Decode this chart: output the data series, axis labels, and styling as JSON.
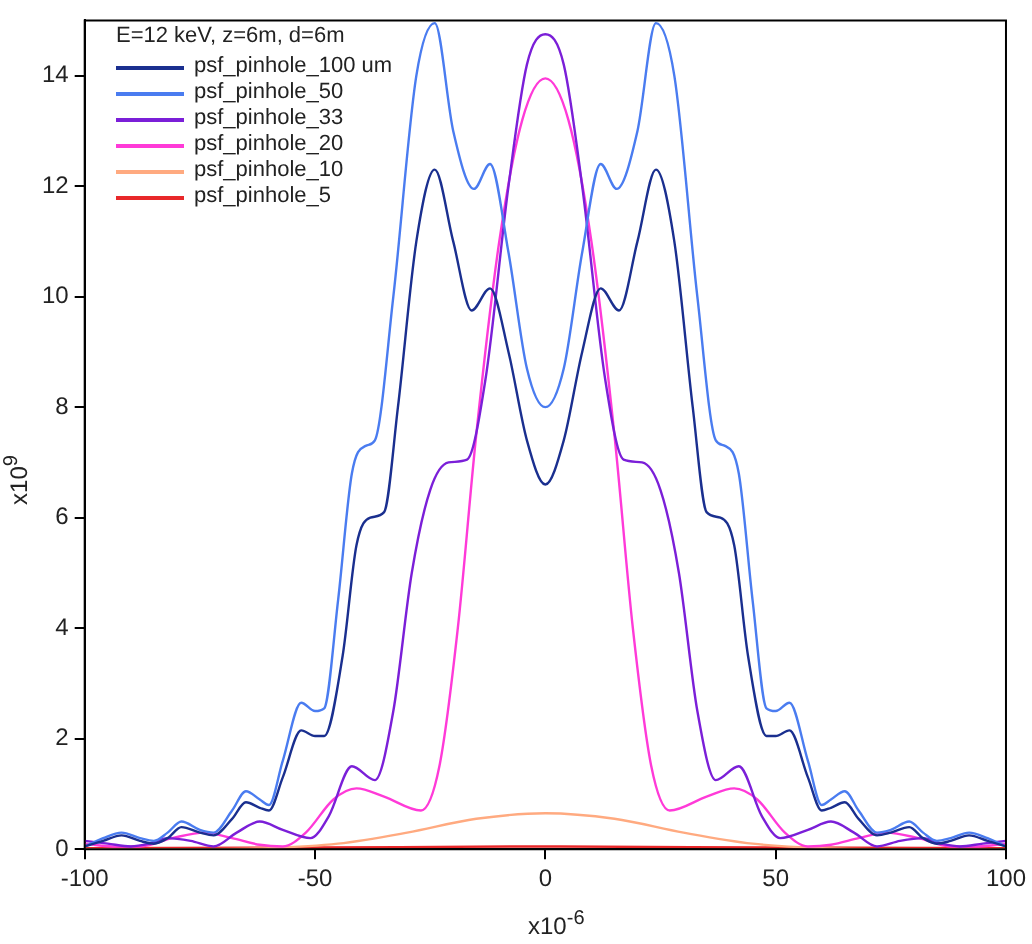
{
  "chart_data": {
    "type": "line",
    "legend_title": "E=12 keV, z=6m, d=6m",
    "xlabel": "x10$^{-6}$",
    "ylabel": "x10$^{9}$",
    "xlim": [
      -100,
      100
    ],
    "xticks": [
      -100,
      -50,
      0,
      50,
      100
    ],
    "ylim": [
      0,
      15
    ],
    "yticks": [
      0,
      2,
      4,
      6,
      8,
      10,
      12,
      14
    ],
    "grid": false,
    "legend": "top left",
    "series": [
      {
        "name": "psf_pinhole_100 um",
        "color": "#1a2f8f",
        "x": [
          -100,
          -96,
          -92,
          -88,
          -85,
          -82,
          -79,
          -75,
          -72,
          -68,
          -65,
          -62,
          -60,
          -57,
          -53,
          -50,
          -48,
          -44,
          -41,
          -38,
          -35,
          -32,
          -28,
          -24,
          -20,
          -16,
          -12,
          -8,
          -4,
          0,
          4,
          8,
          12,
          16,
          20,
          24,
          28,
          32,
          35,
          38,
          41,
          44,
          48,
          50,
          53,
          57,
          60,
          62,
          65,
          68,
          72,
          75,
          79,
          82,
          85,
          88,
          92,
          96,
          100
        ],
        "values": [
          0.05,
          0.15,
          0.25,
          0.15,
          0.1,
          0.2,
          0.4,
          0.3,
          0.25,
          0.55,
          0.85,
          0.75,
          0.7,
          1.3,
          2.15,
          2.05,
          2.05,
          3.5,
          5.5,
          6.0,
          6.1,
          8.0,
          11.0,
          12.3,
          11.0,
          9.75,
          10.15,
          9.0,
          7.4,
          6.6,
          7.4,
          9.0,
          10.15,
          9.75,
          11.0,
          12.3,
          11.0,
          8.0,
          6.1,
          6.0,
          5.5,
          3.5,
          2.05,
          2.05,
          2.15,
          1.3,
          0.7,
          0.75,
          0.85,
          0.55,
          0.25,
          0.3,
          0.4,
          0.2,
          0.1,
          0.15,
          0.25,
          0.15,
          0.05
        ]
      },
      {
        "name": "psf_pinhole_50",
        "color": "#4a7cf0",
        "x": [
          -100,
          -96,
          -92,
          -88,
          -85,
          -82,
          -79,
          -75,
          -72,
          -68,
          -65,
          -62,
          -60,
          -57,
          -53,
          -50,
          -48,
          -45,
          -42,
          -39,
          -37,
          -33,
          -28,
          -24,
          -20,
          -15.5,
          -12,
          -8,
          -4,
          0,
          4,
          8,
          12,
          15.5,
          20,
          24,
          28,
          33,
          37,
          39,
          42,
          45,
          48,
          50,
          53,
          57,
          60,
          62,
          65,
          68,
          72,
          75,
          79,
          82,
          85,
          88,
          92,
          96,
          100
        ],
        "values": [
          0.05,
          0.2,
          0.3,
          0.2,
          0.15,
          0.3,
          0.5,
          0.35,
          0.3,
          0.7,
          1.05,
          0.9,
          0.8,
          1.6,
          2.65,
          2.5,
          2.55,
          4.5,
          6.8,
          7.3,
          7.4,
          10.0,
          14.0,
          14.95,
          13.0,
          11.95,
          12.4,
          10.8,
          8.7,
          8.0,
          8.7,
          10.8,
          12.4,
          11.95,
          13.0,
          14.95,
          14.0,
          10.0,
          7.4,
          7.3,
          6.8,
          4.5,
          2.55,
          2.5,
          2.65,
          1.6,
          0.8,
          0.9,
          1.05,
          0.7,
          0.3,
          0.35,
          0.5,
          0.3,
          0.15,
          0.2,
          0.3,
          0.2,
          0.05
        ]
      },
      {
        "name": "psf_pinhole_33",
        "color": "#7b1fd8",
        "x": [
          -100,
          -95,
          -90,
          -86,
          -82,
          -77,
          -72,
          -67,
          -62,
          -57,
          -51,
          -47,
          -42,
          -37,
          -33,
          -29,
          -25,
          -21,
          -17,
          -13,
          -8,
          -4,
          0,
          4,
          8,
          13,
          17,
          21,
          25,
          29,
          33,
          37,
          42,
          47,
          51,
          57,
          62,
          67,
          72,
          77,
          82,
          86,
          90,
          95,
          100
        ],
        "values": [
          0.15,
          0.1,
          0.05,
          0.1,
          0.2,
          0.15,
          0.05,
          0.3,
          0.5,
          0.35,
          0.2,
          0.6,
          1.5,
          1.25,
          2.5,
          5.0,
          6.5,
          7.0,
          7.05,
          8.5,
          12.0,
          14.2,
          14.75,
          14.2,
          12.0,
          8.5,
          7.05,
          7.0,
          6.5,
          5.0,
          2.5,
          1.25,
          1.5,
          0.6,
          0.2,
          0.35,
          0.5,
          0.3,
          0.05,
          0.15,
          0.2,
          0.1,
          0.05,
          0.1,
          0.15
        ]
      },
      {
        "name": "psf_pinhole_20",
        "color": "#ff3ad8",
        "x": [
          -100,
          -94,
          -88,
          -81,
          -74,
          -68,
          -62,
          -57,
          -52,
          -46,
          -41,
          -35,
          -27,
          -23,
          -19,
          -15,
          -10,
          -5,
          0,
          5,
          10,
          15,
          19,
          23,
          27,
          35,
          41,
          46,
          52,
          57,
          62,
          68,
          74,
          81,
          88,
          94,
          100
        ],
        "values": [
          0.1,
          0.05,
          0.05,
          0.2,
          0.3,
          0.2,
          0.08,
          0.05,
          0.3,
          0.9,
          1.1,
          0.95,
          0.7,
          1.5,
          4.0,
          7.5,
          11.0,
          13.2,
          13.95,
          13.2,
          11.0,
          7.5,
          4.0,
          1.5,
          0.7,
          0.95,
          1.1,
          0.9,
          0.3,
          0.05,
          0.08,
          0.2,
          0.3,
          0.2,
          0.05,
          0.05,
          0.1
        ]
      },
      {
        "name": "psf_pinhole_10",
        "color": "#ffaa80",
        "x": [
          -100,
          -80,
          -60,
          -45,
          -30,
          -15,
          0,
          15,
          30,
          45,
          60,
          80,
          100
        ],
        "values": [
          0,
          0,
          0.02,
          0.1,
          0.3,
          0.55,
          0.65,
          0.55,
          0.3,
          0.1,
          0.02,
          0,
          0
        ]
      },
      {
        "name": "psf_pinhole_5",
        "color": "#e8282a",
        "x": [
          -100,
          -50,
          0,
          50,
          100
        ],
        "values": [
          0.02,
          0.03,
          0.05,
          0.03,
          0.02
        ]
      }
    ]
  }
}
